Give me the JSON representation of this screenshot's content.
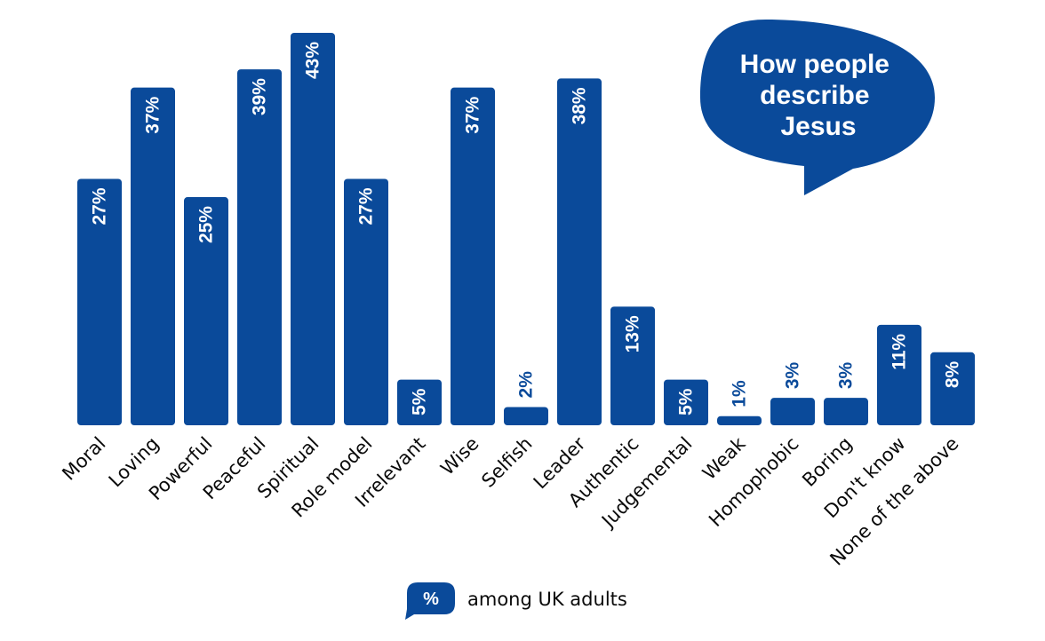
{
  "chart_data": {
    "type": "bar",
    "title": "How people describe Jesus",
    "title_lines": [
      "How people",
      "describe",
      "Jesus"
    ],
    "categories": [
      "Moral",
      "Loving",
      "Powerful",
      "Peaceful",
      "Spiritual",
      "Role model",
      "Irrelevant",
      "Wise",
      "Selfish",
      "Leader",
      "Authentic",
      "Judgemental",
      "Weak",
      "Homophobic",
      "Boring",
      "Don't know",
      "None of the above"
    ],
    "values": [
      27,
      37,
      25,
      39,
      43,
      27,
      5,
      37,
      2,
      38,
      13,
      5,
      1,
      3,
      3,
      11,
      8
    ],
    "value_labels": [
      "27%",
      "37%",
      "25%",
      "39%",
      "43%",
      "27%",
      "5%",
      "37%",
      "2%",
      "38%",
      "13%",
      "5%",
      "1%",
      "3%",
      "3%",
      "11%",
      "8%"
    ],
    "ylim": [
      0,
      43
    ],
    "xlabel": "",
    "ylabel": "",
    "legend": {
      "symbol": "%",
      "text": "among UK adults",
      "position": "bottom-center"
    }
  },
  "colors": {
    "bar": "#0a4a9a",
    "text": "#0a0a0a",
    "label_inside": "#ffffff"
  }
}
